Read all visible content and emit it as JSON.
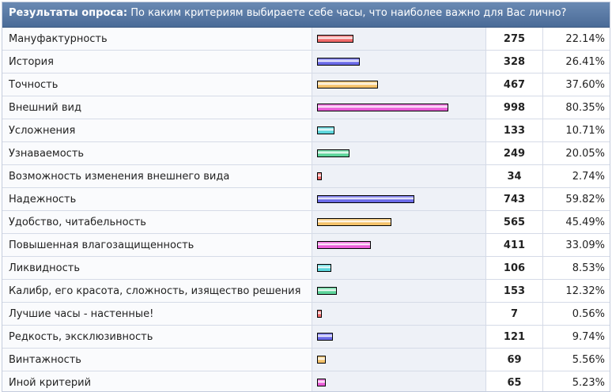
{
  "header": {
    "title": "Результаты опроса:",
    "question": "По каким критериям выбираете себе часы, что наиболее важно для Вас лично?"
  },
  "colors": {
    "red": "#f06a6a",
    "blue": "#6a6ae8",
    "orange": "#f4c26a",
    "magenta": "#ea5cd8",
    "cyan": "#5ad6dc",
    "green": "#5cd49a"
  },
  "rows": [
    {
      "label": "Мануфактурность",
      "count": "275",
      "percent": "22.14%",
      "share": 22.14,
      "color": "red"
    },
    {
      "label": "История",
      "count": "328",
      "percent": "26.41%",
      "share": 26.41,
      "color": "blue"
    },
    {
      "label": "Точность",
      "count": "467",
      "percent": "37.60%",
      "share": 37.6,
      "color": "orange"
    },
    {
      "label": "Внешний вид",
      "count": "998",
      "percent": "80.35%",
      "share": 80.35,
      "color": "magenta"
    },
    {
      "label": "Усложнения",
      "count": "133",
      "percent": "10.71%",
      "share": 10.71,
      "color": "cyan"
    },
    {
      "label": "Узнаваемость",
      "count": "249",
      "percent": "20.05%",
      "share": 20.05,
      "color": "green"
    },
    {
      "label": "Возможность изменения внешнего вида",
      "count": "34",
      "percent": "2.74%",
      "share": 2.74,
      "color": "red"
    },
    {
      "label": "Надежность",
      "count": "743",
      "percent": "59.82%",
      "share": 59.82,
      "color": "blue"
    },
    {
      "label": "Удобство, читабельность",
      "count": "565",
      "percent": "45.49%",
      "share": 45.49,
      "color": "orange"
    },
    {
      "label": "Повышенная влагозащищенность",
      "count": "411",
      "percent": "33.09%",
      "share": 33.09,
      "color": "magenta"
    },
    {
      "label": "Ликвидность",
      "count": "106",
      "percent": "8.53%",
      "share": 8.53,
      "color": "cyan"
    },
    {
      "label": "Калибр, его красота, сложность, изящество решения",
      "count": "153",
      "percent": "12.32%",
      "share": 12.32,
      "color": "green"
    },
    {
      "label": "Лучшие часы - настенные!",
      "count": "7",
      "percent": "0.56%",
      "share": 0.56,
      "color": "red"
    },
    {
      "label": "Редкость, эксклюзивность",
      "count": "121",
      "percent": "9.74%",
      "share": 9.74,
      "color": "blue"
    },
    {
      "label": "Винтажность",
      "count": "69",
      "percent": "5.56%",
      "share": 5.56,
      "color": "orange"
    },
    {
      "label": "Иной критерий",
      "count": "65",
      "percent": "5.23%",
      "share": 5.23,
      "color": "magenta"
    }
  ]
}
